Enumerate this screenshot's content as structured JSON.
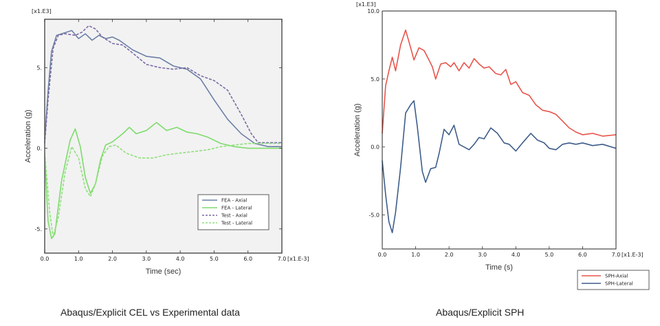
{
  "chart_data": [
    {
      "type": "line",
      "title": "",
      "xlabel": "Time (sec)",
      "ylabel": "Acceleration (g)",
      "x_scale_label": "[x1.E-3]",
      "y_scale_label": "[x1.E3]",
      "xlim": [
        0,
        7
      ],
      "ylim": [
        -6.5,
        8
      ],
      "x_ticks": [
        "0.0",
        "1.0",
        "2.0",
        "3.0",
        "4.0",
        "5.0",
        "6.0",
        "7.0"
      ],
      "y_ticks": [
        {
          "value": 5,
          "label": "5."
        },
        {
          "value": 0,
          "label": "0."
        },
        {
          "value": -5,
          "label": "-5."
        }
      ],
      "legend_position": "bottom-right",
      "grid": false,
      "series": [
        {
          "name": "FEA - Axial",
          "color": "#6b7fa5",
          "dash": false,
          "points": [
            [
              0,
              0.5
            ],
            [
              0.1,
              3.5
            ],
            [
              0.2,
              6.0
            ],
            [
              0.35,
              7.0
            ],
            [
              0.5,
              7.1
            ],
            [
              0.8,
              7.3
            ],
            [
              1.0,
              6.8
            ],
            [
              1.2,
              7.1
            ],
            [
              1.4,
              6.7
            ],
            [
              1.6,
              7.0
            ],
            [
              1.8,
              6.8
            ],
            [
              2.0,
              6.9
            ],
            [
              2.2,
              6.7
            ],
            [
              2.6,
              6.1
            ],
            [
              3.0,
              5.7
            ],
            [
              3.4,
              5.6
            ],
            [
              3.8,
              5.1
            ],
            [
              4.2,
              4.9
            ],
            [
              4.6,
              4.3
            ],
            [
              5.0,
              3.0
            ],
            [
              5.4,
              1.8
            ],
            [
              5.8,
              0.9
            ],
            [
              6.2,
              0.3
            ],
            [
              6.6,
              0.1
            ],
            [
              7.0,
              0.1
            ]
          ]
        },
        {
          "name": "FEA - Lateral",
          "color": "#7ddb6b",
          "dash": false,
          "points": [
            [
              0,
              -0.5
            ],
            [
              0.1,
              -4.5
            ],
            [
              0.2,
              -5.6
            ],
            [
              0.3,
              -5.3
            ],
            [
              0.5,
              -2.0
            ],
            [
              0.75,
              0.5
            ],
            [
              0.9,
              1.2
            ],
            [
              1.05,
              0.1
            ],
            [
              1.2,
              -1.8
            ],
            [
              1.35,
              -2.8
            ],
            [
              1.5,
              -2.2
            ],
            [
              1.65,
              -0.7
            ],
            [
              1.8,
              0.2
            ],
            [
              2.0,
              0.4
            ],
            [
              2.3,
              0.9
            ],
            [
              2.5,
              1.3
            ],
            [
              2.7,
              0.9
            ],
            [
              3.0,
              1.1
            ],
            [
              3.3,
              1.6
            ],
            [
              3.6,
              1.1
            ],
            [
              3.9,
              1.3
            ],
            [
              4.2,
              1.0
            ],
            [
              4.5,
              0.9
            ],
            [
              4.8,
              0.7
            ],
            [
              5.2,
              0.3
            ],
            [
              5.6,
              0.1
            ],
            [
              6.0,
              0.0
            ],
            [
              7.0,
              0.0
            ]
          ]
        },
        {
          "name": "Test - Axial",
          "color": "#7a6aa5",
          "dash": true,
          "points": [
            [
              0,
              0.3
            ],
            [
              0.1,
              3.0
            ],
            [
              0.25,
              6.2
            ],
            [
              0.4,
              7.0
            ],
            [
              0.6,
              7.1
            ],
            [
              0.9,
              7.0
            ],
            [
              1.1,
              7.2
            ],
            [
              1.3,
              7.6
            ],
            [
              1.5,
              7.4
            ],
            [
              1.7,
              6.9
            ],
            [
              2.0,
              6.5
            ],
            [
              2.3,
              6.4
            ],
            [
              2.6,
              5.9
            ],
            [
              3.0,
              5.2
            ],
            [
              3.4,
              5.0
            ],
            [
              3.8,
              4.9
            ],
            [
              4.2,
              5.0
            ],
            [
              4.6,
              4.5
            ],
            [
              5.0,
              4.2
            ],
            [
              5.4,
              3.6
            ],
            [
              5.8,
              2.1
            ],
            [
              6.1,
              0.9
            ],
            [
              6.3,
              0.35
            ],
            [
              7.0,
              0.35
            ]
          ]
        },
        {
          "name": "Test - Lateral",
          "color": "#8ee07a",
          "dash": true,
          "points": [
            [
              0,
              -0.3
            ],
            [
              0.15,
              -4.0
            ],
            [
              0.25,
              -5.5
            ],
            [
              0.4,
              -4.3
            ],
            [
              0.6,
              -1.5
            ],
            [
              0.8,
              0.1
            ],
            [
              1.0,
              -0.6
            ],
            [
              1.2,
              -2.5
            ],
            [
              1.35,
              -3.0
            ],
            [
              1.5,
              -2.2
            ],
            [
              1.7,
              -0.5
            ],
            [
              1.9,
              0.1
            ],
            [
              2.1,
              0.2
            ],
            [
              2.4,
              -0.3
            ],
            [
              2.8,
              -0.6
            ],
            [
              3.2,
              -0.6
            ],
            [
              3.6,
              -0.4
            ],
            [
              4.0,
              -0.3
            ],
            [
              4.4,
              -0.2
            ],
            [
              4.8,
              -0.1
            ],
            [
              5.2,
              0.1
            ],
            [
              5.6,
              0.2
            ],
            [
              6.0,
              0.3
            ],
            [
              7.0,
              0.3
            ]
          ]
        }
      ]
    },
    {
      "type": "line",
      "title": "",
      "xlabel": "Time (s)",
      "ylabel": "Acceleration (g)",
      "x_scale_label": "[x1.E-3]",
      "y_scale_label": "[x1.E3]",
      "xlim": [
        0,
        7
      ],
      "ylim": [
        -7.5,
        10
      ],
      "x_ticks": [
        "0.0",
        "1.0",
        "2.0",
        "3.0",
        "4.0",
        "5.0",
        "6.0",
        "7.0"
      ],
      "y_ticks": [
        {
          "value": 10,
          "label": "10.0"
        },
        {
          "value": 5,
          "label": "5.0"
        },
        {
          "value": 0,
          "label": "0.0"
        },
        {
          "value": -5,
          "label": "-5.0"
        }
      ],
      "legend_position": "outside-bottom-right",
      "grid": false,
      "series": [
        {
          "name": "SPH-Axial",
          "color": "#e8534a",
          "dash": false,
          "points": [
            [
              0,
              1.0
            ],
            [
              0.1,
              4.5
            ],
            [
              0.2,
              5.6
            ],
            [
              0.3,
              6.6
            ],
            [
              0.4,
              5.6
            ],
            [
              0.55,
              7.5
            ],
            [
              0.7,
              8.6
            ],
            [
              0.85,
              7.3
            ],
            [
              0.95,
              6.4
            ],
            [
              1.1,
              7.3
            ],
            [
              1.25,
              7.1
            ],
            [
              1.4,
              6.4
            ],
            [
              1.5,
              5.9
            ],
            [
              1.6,
              5.0
            ],
            [
              1.75,
              6.1
            ],
            [
              1.9,
              6.2
            ],
            [
              2.05,
              5.9
            ],
            [
              2.15,
              6.2
            ],
            [
              2.3,
              5.6
            ],
            [
              2.45,
              6.2
            ],
            [
              2.6,
              5.8
            ],
            [
              2.75,
              6.5
            ],
            [
              2.9,
              6.1
            ],
            [
              3.05,
              5.8
            ],
            [
              3.2,
              5.9
            ],
            [
              3.4,
              5.4
            ],
            [
              3.55,
              5.3
            ],
            [
              3.7,
              5.7
            ],
            [
              3.85,
              4.6
            ],
            [
              4.0,
              4.8
            ],
            [
              4.2,
              4.0
            ],
            [
              4.4,
              3.8
            ],
            [
              4.6,
              3.1
            ],
            [
              4.8,
              2.7
            ],
            [
              5.0,
              2.6
            ],
            [
              5.2,
              2.4
            ],
            [
              5.4,
              1.9
            ],
            [
              5.6,
              1.4
            ],
            [
              5.8,
              1.1
            ],
            [
              6.0,
              0.9
            ],
            [
              6.3,
              1.0
            ],
            [
              6.6,
              0.8
            ],
            [
              7.0,
              0.9
            ]
          ]
        },
        {
          "name": "SPH-Lateral",
          "color": "#3d5c8a",
          "dash": false,
          "points": [
            [
              0,
              -1.0
            ],
            [
              0.1,
              -3.5
            ],
            [
              0.2,
              -5.5
            ],
            [
              0.3,
              -6.3
            ],
            [
              0.4,
              -4.8
            ],
            [
              0.55,
              -1.5
            ],
            [
              0.7,
              2.5
            ],
            [
              0.85,
              3.1
            ],
            [
              0.95,
              3.4
            ],
            [
              1.05,
              1.5
            ],
            [
              1.2,
              -1.8
            ],
            [
              1.3,
              -2.6
            ],
            [
              1.45,
              -1.6
            ],
            [
              1.6,
              -1.5
            ],
            [
              1.7,
              -0.5
            ],
            [
              1.85,
              1.3
            ],
            [
              2.0,
              0.9
            ],
            [
              2.15,
              1.6
            ],
            [
              2.3,
              0.2
            ],
            [
              2.45,
              0.0
            ],
            [
              2.6,
              -0.2
            ],
            [
              2.75,
              0.2
            ],
            [
              2.9,
              0.7
            ],
            [
              3.05,
              0.6
            ],
            [
              3.25,
              1.4
            ],
            [
              3.45,
              1.0
            ],
            [
              3.65,
              0.3
            ],
            [
              3.8,
              0.2
            ],
            [
              4.0,
              -0.3
            ],
            [
              4.2,
              0.3
            ],
            [
              4.45,
              1.0
            ],
            [
              4.65,
              0.5
            ],
            [
              4.85,
              0.3
            ],
            [
              5.0,
              -0.1
            ],
            [
              5.2,
              -0.2
            ],
            [
              5.4,
              0.2
            ],
            [
              5.6,
              0.3
            ],
            [
              5.8,
              0.2
            ],
            [
              6.0,
              0.3
            ],
            [
              6.3,
              0.1
            ],
            [
              6.6,
              0.2
            ],
            [
              7.0,
              -0.1
            ]
          ]
        }
      ]
    }
  ],
  "captions": {
    "left": "Abaqus/Explicit CEL vs Experimental data",
    "right": "Abaqus/Explicit SPH"
  }
}
